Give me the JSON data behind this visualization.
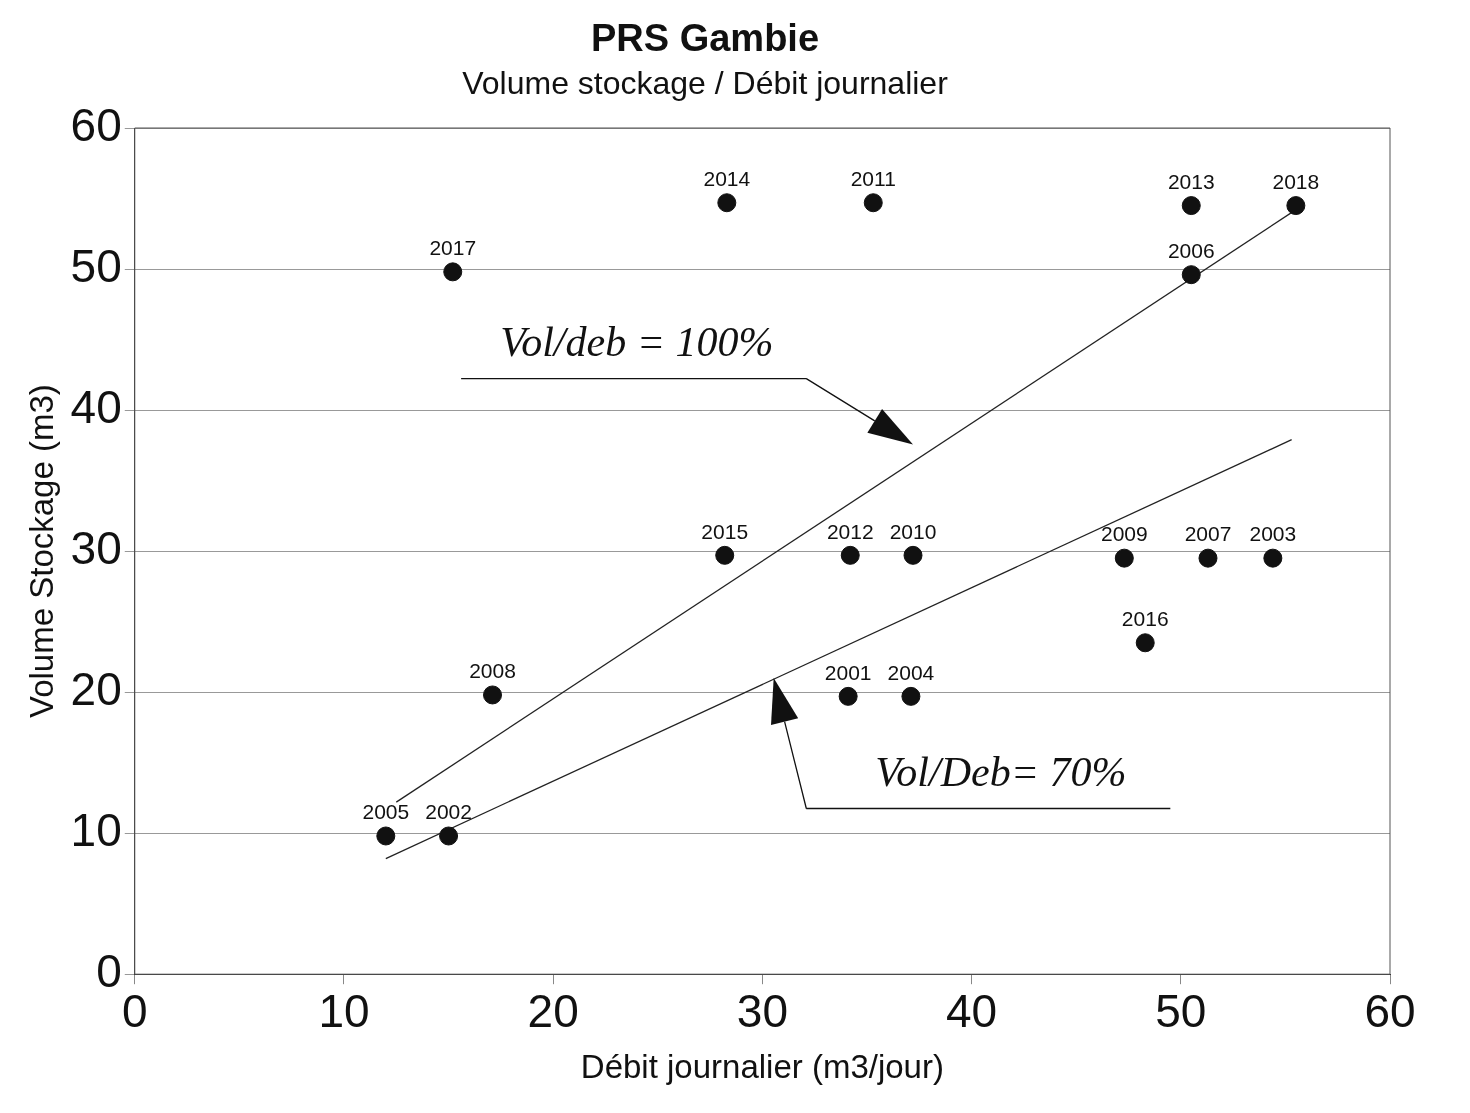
{
  "chart_data": {
    "type": "scatter",
    "title": "PRS Gambie",
    "subtitle": "Volume stockage / Débit journalier",
    "xlabel": "Débit journalier (m3/jour)",
    "ylabel": "Volume Stockage (m3)",
    "xlim": [
      0,
      60
    ],
    "xticks": [
      0,
      10,
      20,
      30,
      40,
      50,
      60
    ],
    "ylim": [
      0,
      60
    ],
    "yticks": [
      0,
      10,
      20,
      30,
      40,
      50,
      60
    ],
    "grid": "y",
    "legend": false,
    "marker": "circle",
    "series": [
      {
        "type": "scatter",
        "color": "#111111",
        "x": [
          15.2,
          28.3,
          35.3,
          50.5,
          55.5,
          50.5,
          28.2,
          34.2,
          37.2,
          47.3,
          51.3,
          54.4,
          48.3,
          17.1,
          34.1,
          37.1,
          12.0,
          15.0
        ],
        "values": [
          49.8,
          54.7,
          54.7,
          54.5,
          54.5,
          49.6,
          29.7,
          29.7,
          29.7,
          29.5,
          29.5,
          29.5,
          23.5,
          19.8,
          19.7,
          19.7,
          9.8,
          9.8
        ]
      },
      {
        "type": "line",
        "color": "#222222",
        "marker": "none",
        "x": [
          12.5,
          55.6
        ],
        "values": [
          12.2,
          54.3
        ]
      },
      {
        "type": "line",
        "color": "#222222",
        "marker": "none",
        "x": [
          12.0,
          55.3
        ],
        "values": [
          8.2,
          37.9
        ]
      }
    ],
    "annotations": [
      {
        "text": "2017",
        "x": 15.2,
        "y": 49.8
      },
      {
        "text": "2014",
        "x": 28.3,
        "y": 54.7
      },
      {
        "text": "2011",
        "x": 35.3,
        "y": 54.7
      },
      {
        "text": "2013",
        "x": 50.5,
        "y": 54.5
      },
      {
        "text": "2018",
        "x": 55.5,
        "y": 54.5
      },
      {
        "text": "2006",
        "x": 50.5,
        "y": 49.6
      },
      {
        "text": "2015",
        "x": 28.2,
        "y": 29.7
      },
      {
        "text": "2012",
        "x": 34.2,
        "y": 29.7
      },
      {
        "text": "2010",
        "x": 37.2,
        "y": 29.7
      },
      {
        "text": "2009",
        "x": 47.3,
        "y": 29.5
      },
      {
        "text": "2007",
        "x": 51.3,
        "y": 29.5
      },
      {
        "text": "2003",
        "x": 54.4,
        "y": 29.5
      },
      {
        "text": "2016",
        "x": 48.3,
        "y": 23.5
      },
      {
        "text": "2008",
        "x": 17.1,
        "y": 19.8
      },
      {
        "text": "2001",
        "x": 34.1,
        "y": 19.7
      },
      {
        "text": "2004",
        "x": 37.1,
        "y": 19.7
      },
      {
        "text": "2005",
        "x": 12.0,
        "y": 9.8
      },
      {
        "text": "2002",
        "x": 15.0,
        "y": 9.8
      },
      "Vol/deb = 100%",
      "Vol/Deb= 70%"
    ]
  }
}
